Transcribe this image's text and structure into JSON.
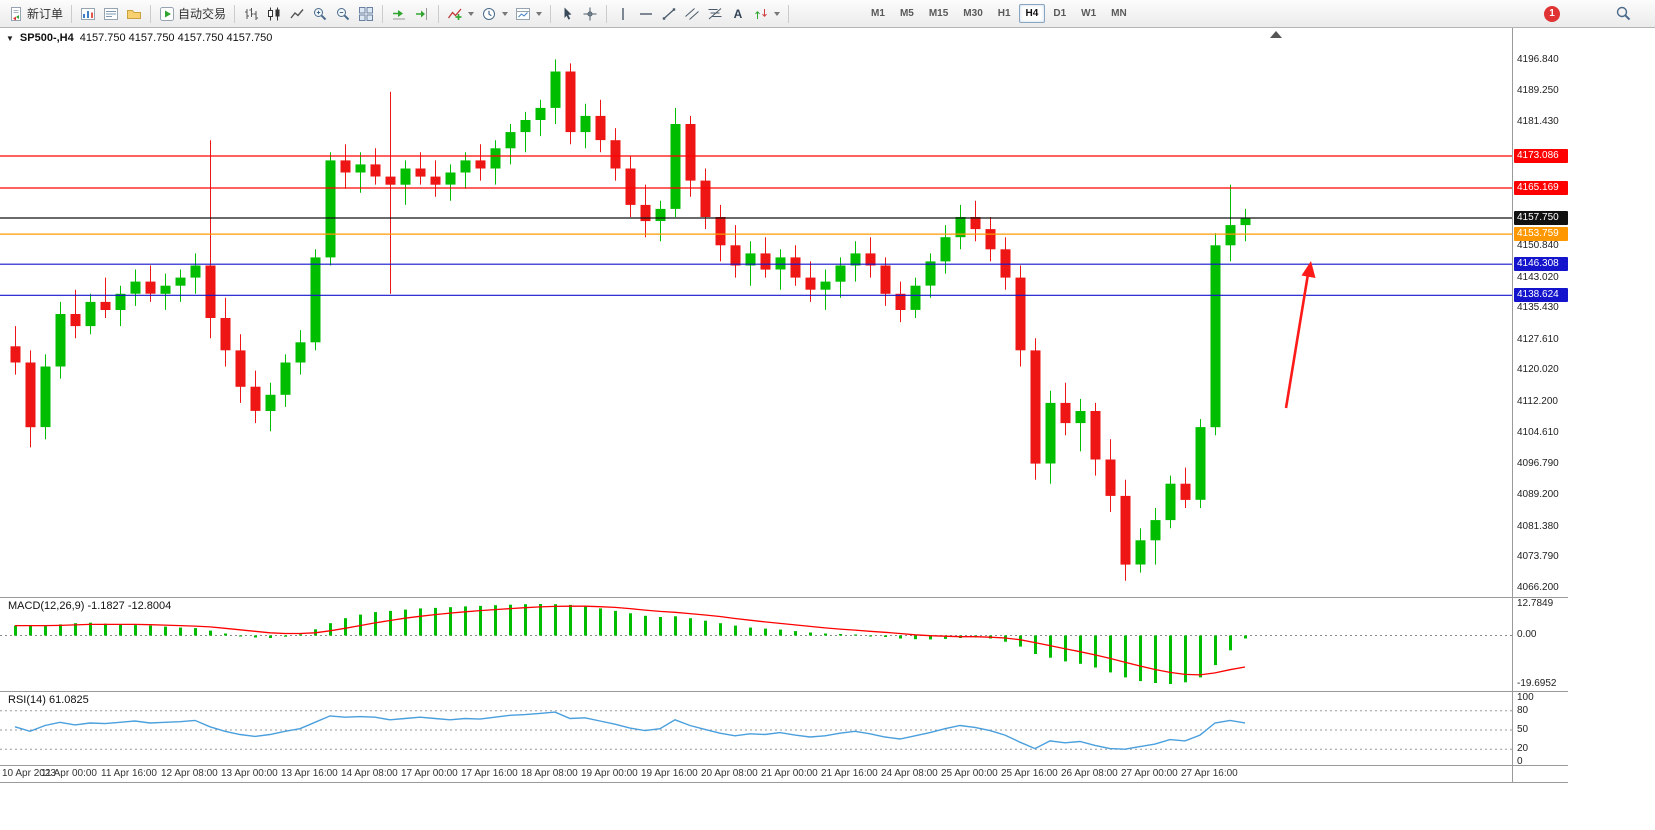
{
  "toolbar": {
    "new_order_label": "新订单",
    "auto_trading_label": "自动交易",
    "text_tool_label": "A",
    "timeframes": [
      "M1",
      "M5",
      "M15",
      "M30",
      "H1",
      "H4",
      "D1",
      "W1",
      "MN"
    ],
    "active_timeframe": "H4",
    "notification_badge": "1"
  },
  "chart": {
    "symbol_title": "SP500-,H4",
    "ohlc_readout": "4157.750 4157.750 4157.750 4157.750",
    "colors": {
      "up": "#00bd00",
      "down": "#ee1515",
      "current": "#111111",
      "arrow": "#ff1a1a",
      "macd_histogram": "#00bd00",
      "macd_signal": "#ff0000",
      "rsi_line": "#4a9fdd"
    }
  },
  "chart_data": {
    "type": "candlestick",
    "symbol": "SP500-",
    "timeframe": "H4",
    "price_range": [
      4066.2,
      4196.84
    ],
    "price_axis_ticks": [
      "4196.840",
      "4189.250",
      "4181.430",
      "4150.840",
      "4143.020",
      "4135.430",
      "4127.610",
      "4120.020",
      "4112.200",
      "4104.610",
      "4096.790",
      "4089.200",
      "4081.380",
      "4073.790",
      "4066.200"
    ],
    "levels": [
      {
        "label": "4173.086",
        "value": 4173.086,
        "color": "#ff0000",
        "role": "resistance"
      },
      {
        "label": "4165.169",
        "value": 4165.169,
        "color": "#ff0000",
        "role": "resistance"
      },
      {
        "label": "4157.750",
        "value": 4157.75,
        "color": "#111111",
        "role": "current-price"
      },
      {
        "label": "4153.759",
        "value": 4153.759,
        "color": "#ff9800",
        "role": "pivot"
      },
      {
        "label": "4146.308",
        "value": 4146.308,
        "color": "#1414cd",
        "role": "support"
      },
      {
        "label": "4138.624",
        "value": 4138.624,
        "color": "#1414cd",
        "role": "support"
      }
    ],
    "time_axis_ticks": [
      {
        "i": 0,
        "label": "10 Apr 2023"
      },
      {
        "i": 4,
        "label": "11 Apr 00:00"
      },
      {
        "i": 8,
        "label": "11 Apr 16:00"
      },
      {
        "i": 12,
        "label": "12 Apr 08:00"
      },
      {
        "i": 16,
        "label": "13 Apr 00:00"
      },
      {
        "i": 20,
        "label": "13 Apr 16:00"
      },
      {
        "i": 24,
        "label": "14 Apr 08:00"
      },
      {
        "i": 28,
        "label": "17 Apr 00:00"
      },
      {
        "i": 32,
        "label": "17 Apr 16:00"
      },
      {
        "i": 36,
        "label": "18 Apr 08:00"
      },
      {
        "i": 40,
        "label": "19 Apr 00:00"
      },
      {
        "i": 44,
        "label": "19 Apr 16:00"
      },
      {
        "i": 48,
        "label": "20 Apr 08:00"
      },
      {
        "i": 52,
        "label": "21 Apr 00:00"
      },
      {
        "i": 56,
        "label": "21 Apr 16:00"
      },
      {
        "i": 60,
        "label": "24 Apr 08:00"
      },
      {
        "i": 64,
        "label": "25 Apr 00:00"
      },
      {
        "i": 68,
        "label": "25 Apr 16:00"
      },
      {
        "i": 72,
        "label": "26 Apr 08:00"
      },
      {
        "i": 76,
        "label": "27 Apr 00:00"
      },
      {
        "i": 80,
        "label": "27 Apr 16:00"
      }
    ],
    "candles": [
      [
        4126,
        4131,
        4119,
        4122
      ],
      [
        4122,
        4125,
        4101,
        4106
      ],
      [
        4106,
        4124,
        4103,
        4121
      ],
      [
        4121,
        4137,
        4118,
        4134
      ],
      [
        4134,
        4140,
        4128,
        4131
      ],
      [
        4131,
        4139,
        4129,
        4137
      ],
      [
        4137,
        4143,
        4133,
        4135
      ],
      [
        4135,
        4141,
        4131,
        4139
      ],
      [
        4139,
        4145,
        4136,
        4142
      ],
      [
        4142,
        4146,
        4137,
        4139
      ],
      [
        4139,
        4144,
        4135,
        4141
      ],
      [
        4141,
        4145,
        4137,
        4143
      ],
      [
        4143,
        4149,
        4139,
        4146
      ],
      [
        4146,
        4177,
        4128,
        4133
      ],
      [
        4133,
        4138,
        4121,
        4125
      ],
      [
        4125,
        4129,
        4112,
        4116
      ],
      [
        4116,
        4120,
        4107,
        4110
      ],
      [
        4110,
        4117,
        4105,
        4114
      ],
      [
        4114,
        4124,
        4111,
        4122
      ],
      [
        4122,
        4130,
        4119,
        4127
      ],
      [
        4127,
        4150,
        4125,
        4148
      ],
      [
        4148,
        4174,
        4146,
        4172
      ],
      [
        4172,
        4176,
        4165,
        4169
      ],
      [
        4169,
        4174,
        4164,
        4171
      ],
      [
        4171,
        4175,
        4166,
        4168
      ],
      [
        4168,
        4189,
        4139,
        4166
      ],
      [
        4166,
        4172,
        4161,
        4170
      ],
      [
        4170,
        4174,
        4166,
        4168
      ],
      [
        4168,
        4172,
        4163,
        4166
      ],
      [
        4166,
        4171,
        4162,
        4169
      ],
      [
        4169,
        4174,
        4165,
        4172
      ],
      [
        4172,
        4176,
        4167,
        4170
      ],
      [
        4170,
        4177,
        4166,
        4175
      ],
      [
        4175,
        4181,
        4171,
        4179
      ],
      [
        4179,
        4184,
        4174,
        4182
      ],
      [
        4182,
        4187,
        4178,
        4185
      ],
      [
        4185,
        4197,
        4181,
        4194
      ],
      [
        4194,
        4196,
        4176,
        4179
      ],
      [
        4179,
        4186,
        4175,
        4183
      ],
      [
        4183,
        4187,
        4174,
        4177
      ],
      [
        4177,
        4180,
        4167,
        4170
      ],
      [
        4170,
        4173,
        4158,
        4161
      ],
      [
        4161,
        4166,
        4153,
        4157
      ],
      [
        4157,
        4162,
        4152,
        4160
      ],
      [
        4160,
        4185,
        4158,
        4181
      ],
      [
        4181,
        4183,
        4163,
        4167
      ],
      [
        4167,
        4170,
        4155,
        4158
      ],
      [
        4158,
        4161,
        4147,
        4151
      ],
      [
        4151,
        4156,
        4143,
        4146
      ],
      [
        4146,
        4152,
        4141,
        4149
      ],
      [
        4149,
        4153,
        4143,
        4145
      ],
      [
        4145,
        4150,
        4140,
        4148
      ],
      [
        4148,
        4151,
        4141,
        4143
      ],
      [
        4143,
        4147,
        4137,
        4140
      ],
      [
        4140,
        4145,
        4135,
        4142
      ],
      [
        4142,
        4148,
        4138,
        4146
      ],
      [
        4146,
        4152,
        4142,
        4149
      ],
      [
        4149,
        4153,
        4143,
        4146
      ],
      [
        4146,
        4148,
        4136,
        4139
      ],
      [
        4139,
        4142,
        4132,
        4135
      ],
      [
        4135,
        4143,
        4133,
        4141
      ],
      [
        4141,
        4149,
        4138,
        4147
      ],
      [
        4147,
        4156,
        4144,
        4153
      ],
      [
        4153,
        4161,
        4150,
        4158
      ],
      [
        4158,
        4162,
        4152,
        4155
      ],
      [
        4155,
        4158,
        4147,
        4150
      ],
      [
        4150,
        4153,
        4140,
        4143
      ],
      [
        4143,
        4146,
        4121,
        4125
      ],
      [
        4125,
        4128,
        4093,
        4097
      ],
      [
        4097,
        4115,
        4092,
        4112
      ],
      [
        4112,
        4117,
        4104,
        4107
      ],
      [
        4107,
        4113,
        4100,
        4110
      ],
      [
        4110,
        4112,
        4094,
        4098
      ],
      [
        4098,
        4103,
        4085,
        4089
      ],
      [
        4089,
        4093,
        4068,
        4072
      ],
      [
        4072,
        4081,
        4070,
        4078
      ],
      [
        4078,
        4086,
        4072,
        4083
      ],
      [
        4083,
        4094,
        4081,
        4092
      ],
      [
        4092,
        4096,
        4086,
        4088
      ],
      [
        4088,
        4108,
        4086,
        4106
      ],
      [
        4106,
        4154,
        4104,
        4151
      ],
      [
        4151,
        4166,
        4147,
        4156
      ],
      [
        4156,
        4160,
        4152,
        4157.75
      ]
    ],
    "indicators": {
      "macd": {
        "label": "MACD(12,26,9) -1.1827 -12.8004",
        "axis_labels": [
          "12.7849",
          "0.00",
          "-19.6952"
        ],
        "range": [
          -19.6952,
          12.7849
        ],
        "histogram": [
          4.0,
          4.2,
          3.8,
          4.5,
          5.0,
          5.2,
          4.8,
          4.5,
          4.2,
          4.0,
          3.6,
          3.2,
          3.0,
          2.0,
          0.8,
          -0.2,
          -0.8,
          -1.0,
          -0.5,
          0.5,
          2.5,
          5.0,
          7.0,
          8.5,
          9.5,
          10.0,
          10.5,
          11.0,
          11.2,
          11.5,
          11.8,
          12.0,
          12.3,
          12.5,
          12.7,
          12.8,
          12.7,
          12.4,
          11.8,
          11.0,
          10.0,
          9.0,
          8.0,
          7.5,
          7.8,
          7.0,
          6.0,
          5.0,
          4.0,
          3.2,
          2.8,
          2.4,
          1.8,
          1.2,
          0.8,
          0.6,
          0.4,
          0.0,
          -0.6,
          -1.2,
          -1.5,
          -1.6,
          -1.4,
          -1.0,
          -0.8,
          -1.2,
          -2.5,
          -4.5,
          -7.5,
          -9.0,
          -10.5,
          -11.5,
          -13.0,
          -15.0,
          -17.0,
          -18.5,
          -19.3,
          -19.7,
          -19.0,
          -17.0,
          -12.0,
          -6.0,
          -1.2
        ],
        "signal": [
          4.0,
          4.0,
          4.0,
          4.1,
          4.3,
          4.5,
          4.5,
          4.5,
          4.5,
          4.4,
          4.2,
          4.0,
          3.8,
          3.5,
          2.9,
          2.3,
          1.7,
          1.1,
          0.8,
          0.8,
          1.1,
          1.9,
          2.9,
          4.0,
          5.1,
          6.1,
          7.0,
          7.8,
          8.5,
          9.1,
          9.6,
          10.1,
          10.5,
          10.9,
          11.3,
          11.6,
          11.8,
          11.9,
          11.9,
          11.7,
          11.4,
          10.9,
          10.3,
          9.8,
          9.4,
          8.9,
          8.3,
          7.7,
          6.9,
          6.2,
          5.5,
          4.9,
          4.3,
          3.7,
          3.1,
          2.6,
          2.2,
          1.7,
          1.3,
          0.8,
          0.3,
          -0.1,
          -0.3,
          -0.5,
          -0.5,
          -0.7,
          -1.0,
          -1.7,
          -2.9,
          -4.1,
          -5.4,
          -6.6,
          -7.9,
          -9.3,
          -10.9,
          -12.4,
          -13.8,
          -15.0,
          -15.8,
          -16.0,
          -15.2,
          -13.9,
          -12.8
        ]
      },
      "rsi": {
        "label": "RSI(14) 61.0825",
        "axis_labels": [
          "100",
          "80",
          "50",
          "20",
          "0"
        ],
        "levels": [
          80,
          50,
          20
        ],
        "values": [
          55,
          48,
          57,
          62,
          58,
          61,
          60,
          62,
          64,
          61,
          62,
          63,
          65,
          55,
          48,
          43,
          40,
          43,
          48,
          52,
          62,
          72,
          70,
          71,
          70,
          66,
          68,
          70,
          68,
          66,
          68,
          67,
          70,
          73,
          74,
          76,
          78,
          68,
          69,
          64,
          59,
          53,
          49,
          52,
          66,
          57,
          51,
          45,
          41,
          44,
          43,
          46,
          42,
          39,
          41,
          45,
          48,
          44,
          39,
          36,
          41,
          46,
          52,
          57,
          54,
          49,
          42,
          31,
          21,
          33,
          30,
          32,
          26,
          21,
          20,
          24,
          28,
          35,
          33,
          42,
          61,
          65,
          61.08
        ]
      }
    },
    "annotations": [
      {
        "type": "arrow",
        "direction": "up",
        "color": "#ff1a1a"
      }
    ]
  }
}
